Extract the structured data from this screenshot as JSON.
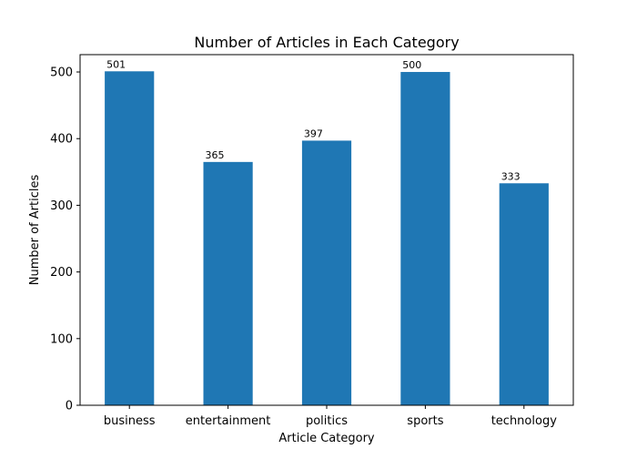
{
  "chart_data": {
    "type": "bar",
    "title": "Number of Articles in Each Category",
    "xlabel": "Article Category",
    "ylabel": "Number of Articles",
    "categories": [
      "business",
      "entertainment",
      "politics",
      "sports",
      "technology"
    ],
    "values": [
      501,
      365,
      397,
      500,
      333
    ],
    "ylim": [
      0,
      526
    ],
    "yticks": [
      0,
      100,
      200,
      300,
      400,
      500
    ],
    "bar_color": "#1f77b4",
    "grid": false,
    "legend": "none"
  }
}
